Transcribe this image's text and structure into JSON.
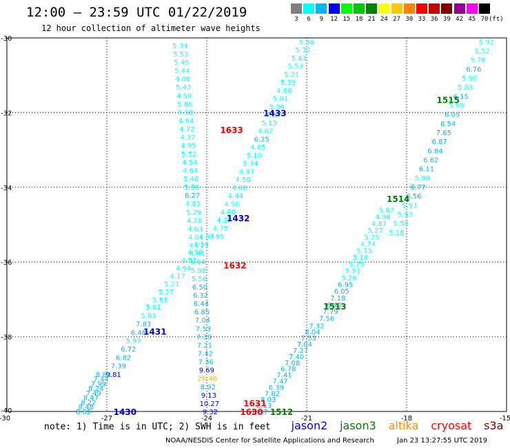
{
  "header": {
    "title": "12:00 – 23:59 UTC 01/22/2019",
    "subtitle": "12 hour collection of altimeter wave heights"
  },
  "color_scale": {
    "unit_label": "(ft)",
    "bins": [
      {
        "label": "3",
        "color": "#7f7f7f"
      },
      {
        "label": "6",
        "color": "#00ffff"
      },
      {
        "label": "9",
        "color": "#00b4ff"
      },
      {
        "label": "12",
        "color": "#0000ff"
      },
      {
        "label": "15",
        "color": "#00ff00"
      },
      {
        "label": "18",
        "color": "#00c800"
      },
      {
        "label": "21",
        "color": "#008200"
      },
      {
        "label": "24",
        "color": "#ffff00"
      },
      {
        "label": "27",
        "color": "#ffc800"
      },
      {
        "label": "30",
        "color": "#ff8200"
      },
      {
        "label": "33",
        "color": "#ff0000"
      },
      {
        "label": "36",
        "color": "#c80000"
      },
      {
        "label": "39",
        "color": "#820000"
      },
      {
        "label": "42",
        "color": "#960096"
      },
      {
        "label": "45",
        "color": "#ff00ff"
      },
      {
        "label": "70",
        "color": "#000000"
      }
    ]
  },
  "legend": {
    "note": "note:  1) Time is in UTC;  2) SWH is in feet",
    "missions": [
      {
        "name": "jason2",
        "color": "#0000dd"
      },
      {
        "name": "jason3",
        "color": "#008000"
      },
      {
        "name": "altika",
        "color": "#ff8c00"
      },
      {
        "name": "cryosat",
        "color": "#ff0000"
      },
      {
        "name": "s3a",
        "color": "#800000"
      }
    ]
  },
  "footer": {
    "credit": "NOAA/NESDIS Center for Satellite Applications and Research",
    "timestamp": "Jan 23 13:27:55 UTC 2019"
  },
  "chart_data": {
    "type": "scatter",
    "title": "12:00 – 23:59 UTC 01/22/2019",
    "subtitle": "12 hour collection of altimeter wave heights",
    "xlim": [
      -30,
      -15
    ],
    "ylim": [
      -40,
      -30
    ],
    "x_ticks": [
      -27,
      -24,
      -21,
      -18
    ],
    "x_tick_labels": [
      "-27",
      "-24",
      "-21",
      "-18"
    ],
    "x_corner_labels": [
      "-30",
      "-15"
    ],
    "y_ticks": [
      -32,
      -34,
      -36,
      -38
    ],
    "y_tick_labels": [
      "-32",
      "-34",
      "-36",
      "-38"
    ],
    "y_corner_labels": [
      "-30",
      "-40"
    ],
    "grid": "dotted",
    "tracks": [
      {
        "mission": "cryosat",
        "time_label": "1633",
        "color": "#ff0000",
        "label_lon": -23.6,
        "label_lat": -32.45,
        "start": [
          -24.8,
          -30.2
        ],
        "end": [
          -23.9,
          -40.0
        ],
        "values": [
          "5.34",
          "5.53",
          "5.45",
          "5.44",
          "4.08",
          "5.43",
          "4.50",
          "5.86",
          "5.58",
          "4.64",
          "4.72",
          "4.37",
          "4.95",
          "5.52",
          "4.54",
          "4.64",
          "5.40",
          "5.56",
          "6.27",
          "4.81",
          "5.29",
          "4.28",
          "4.63",
          "4.04",
          "4.21",
          "4.95",
          "5.14",
          "5.98",
          "5.56",
          "6.50",
          "6.32",
          "6.44",
          "6.85",
          "7.04",
          "7.53",
          "7.39",
          "7.21",
          "7.42",
          "7.36",
          "9.69",
          "26.46",
          "8.92",
          "9.13",
          "10.27",
          "9.32"
        ]
      },
      {
        "mission": "cryosat",
        "time_label": "1632",
        "color": "#ff0000",
        "label_lon": -23.5,
        "label_lat": -36.08,
        "start": null,
        "end": null,
        "values": []
      },
      {
        "mission": "jason2",
        "time_label": "1433",
        "color": "#0000dd",
        "label_lon": -22.3,
        "label_lat": -32.0,
        "start": [
          -21.0,
          -30.1
        ],
        "end": [
          -23.7,
          -35.3
        ],
        "values": [
          "5.38",
          "5.32",
          "5.61",
          "5.53",
          "5.21",
          "5.39",
          "4.66",
          "5.01",
          "5.36",
          "4.89",
          "5.13",
          "4.62",
          "6.25",
          "4.65",
          "5.10",
          "5.34",
          "4.97",
          "4.58",
          "4.68",
          "4.44",
          "4.56",
          "4.86",
          "4.27",
          "4.78",
          "4.95"
        ]
      },
      {
        "mission": "jason2",
        "time_label": "1432",
        "color": "#0000dd",
        "label_lon": -23.4,
        "label_lat": -34.82,
        "start": [
          -24.0,
          -35.3
        ],
        "end": [
          -25.4,
          -37.0
        ],
        "values": [
          "4.67",
          "4.34",
          "4.59",
          "4.81",
          "4.94",
          "4.17",
          "5.21",
          "5.37",
          "5.81"
        ]
      },
      {
        "mission": "jason2",
        "time_label": "1431",
        "color": "#0000dd",
        "label_lon": -25.9,
        "label_lat": -37.85,
        "start": [
          -25.6,
          -37.2
        ],
        "end": [
          -26.8,
          -39.0
        ],
        "values": [
          "5.81",
          "5.83",
          "7.83",
          "6.48",
          "5.97",
          "6.72",
          "6.82",
          "7.39",
          "9.81"
        ]
      },
      {
        "mission": "jason2",
        "time_label": "1430",
        "color": "#0000dd",
        "label_lon": -26.8,
        "label_lat": -40.0,
        "start": [
          -27.1,
          -39.0
        ],
        "end": [
          -27.7,
          -40.0
        ],
        "values": [
          "8.82",
          "7.44",
          "7.99",
          "8.24",
          "7.49",
          "8.47",
          "8.22",
          "8.48",
          "8.62"
        ]
      },
      {
        "mission": "jason3",
        "time_label": "1515",
        "color": "#008000",
        "label_lon": -17.1,
        "label_lat": -31.65,
        "start": [
          -15.6,
          -30.1
        ],
        "end": [
          -18.3,
          -35.2
        ],
        "values": [
          "5.92",
          "5.52",
          "5.76",
          "6.76",
          "5.90",
          "5.83",
          "6.15",
          "5.99",
          "6.05",
          "6.54",
          "7.65",
          "6.87",
          "6.84",
          "6.62",
          "6.11",
          "5.99",
          "6.77",
          "6.56",
          "5.93",
          "5.53",
          "5.50",
          "5.18"
        ]
      },
      {
        "mission": "jason3",
        "time_label": "1514",
        "color": "#008000",
        "label_lon": -18.6,
        "label_lat": -34.3,
        "start": [
          -18.6,
          -34.6
        ],
        "end": [
          -20.4,
          -37.5
        ],
        "values": [
          "5.87",
          "4.98",
          "4.87",
          "5.27",
          "5.25",
          "4.74",
          "5.73",
          "5.16",
          "5.75",
          "5.51",
          "5.26",
          "6.95",
          "6.05",
          "7.18",
          "6.42",
          "7.79",
          "7.56"
        ]
      },
      {
        "mission": "jason3",
        "time_label": "1513",
        "color": "#008000",
        "label_lon": -20.5,
        "label_lat": -37.18,
        "start": [
          -20.7,
          -37.7
        ],
        "end": [
          -22.4,
          -40.0
        ],
        "values": [
          "7.32",
          "8.04",
          "7.53",
          "7.04",
          "7.27",
          "7.40",
          "7.08",
          "6.78",
          "7.41",
          "7.47",
          "6.39",
          "7.82",
          "8.03",
          "8.13",
          "8.17"
        ]
      },
      {
        "mission": "jason3",
        "time_label": "1512",
        "color": "#008000",
        "label_lon": -22.1,
        "label_lat": -40.0,
        "start": null,
        "end": null,
        "values": []
      },
      {
        "mission": "cryosat",
        "time_label": "1631",
        "color": "#ff0000",
        "label_lon": -22.9,
        "label_lat": -39.77,
        "start": null,
        "end": null,
        "values": []
      },
      {
        "mission": "cryosat",
        "time_label": "1630",
        "color": "#ff0000",
        "label_lon": -23.0,
        "label_lat": -40.0,
        "start": null,
        "end": null,
        "values": []
      }
    ]
  }
}
